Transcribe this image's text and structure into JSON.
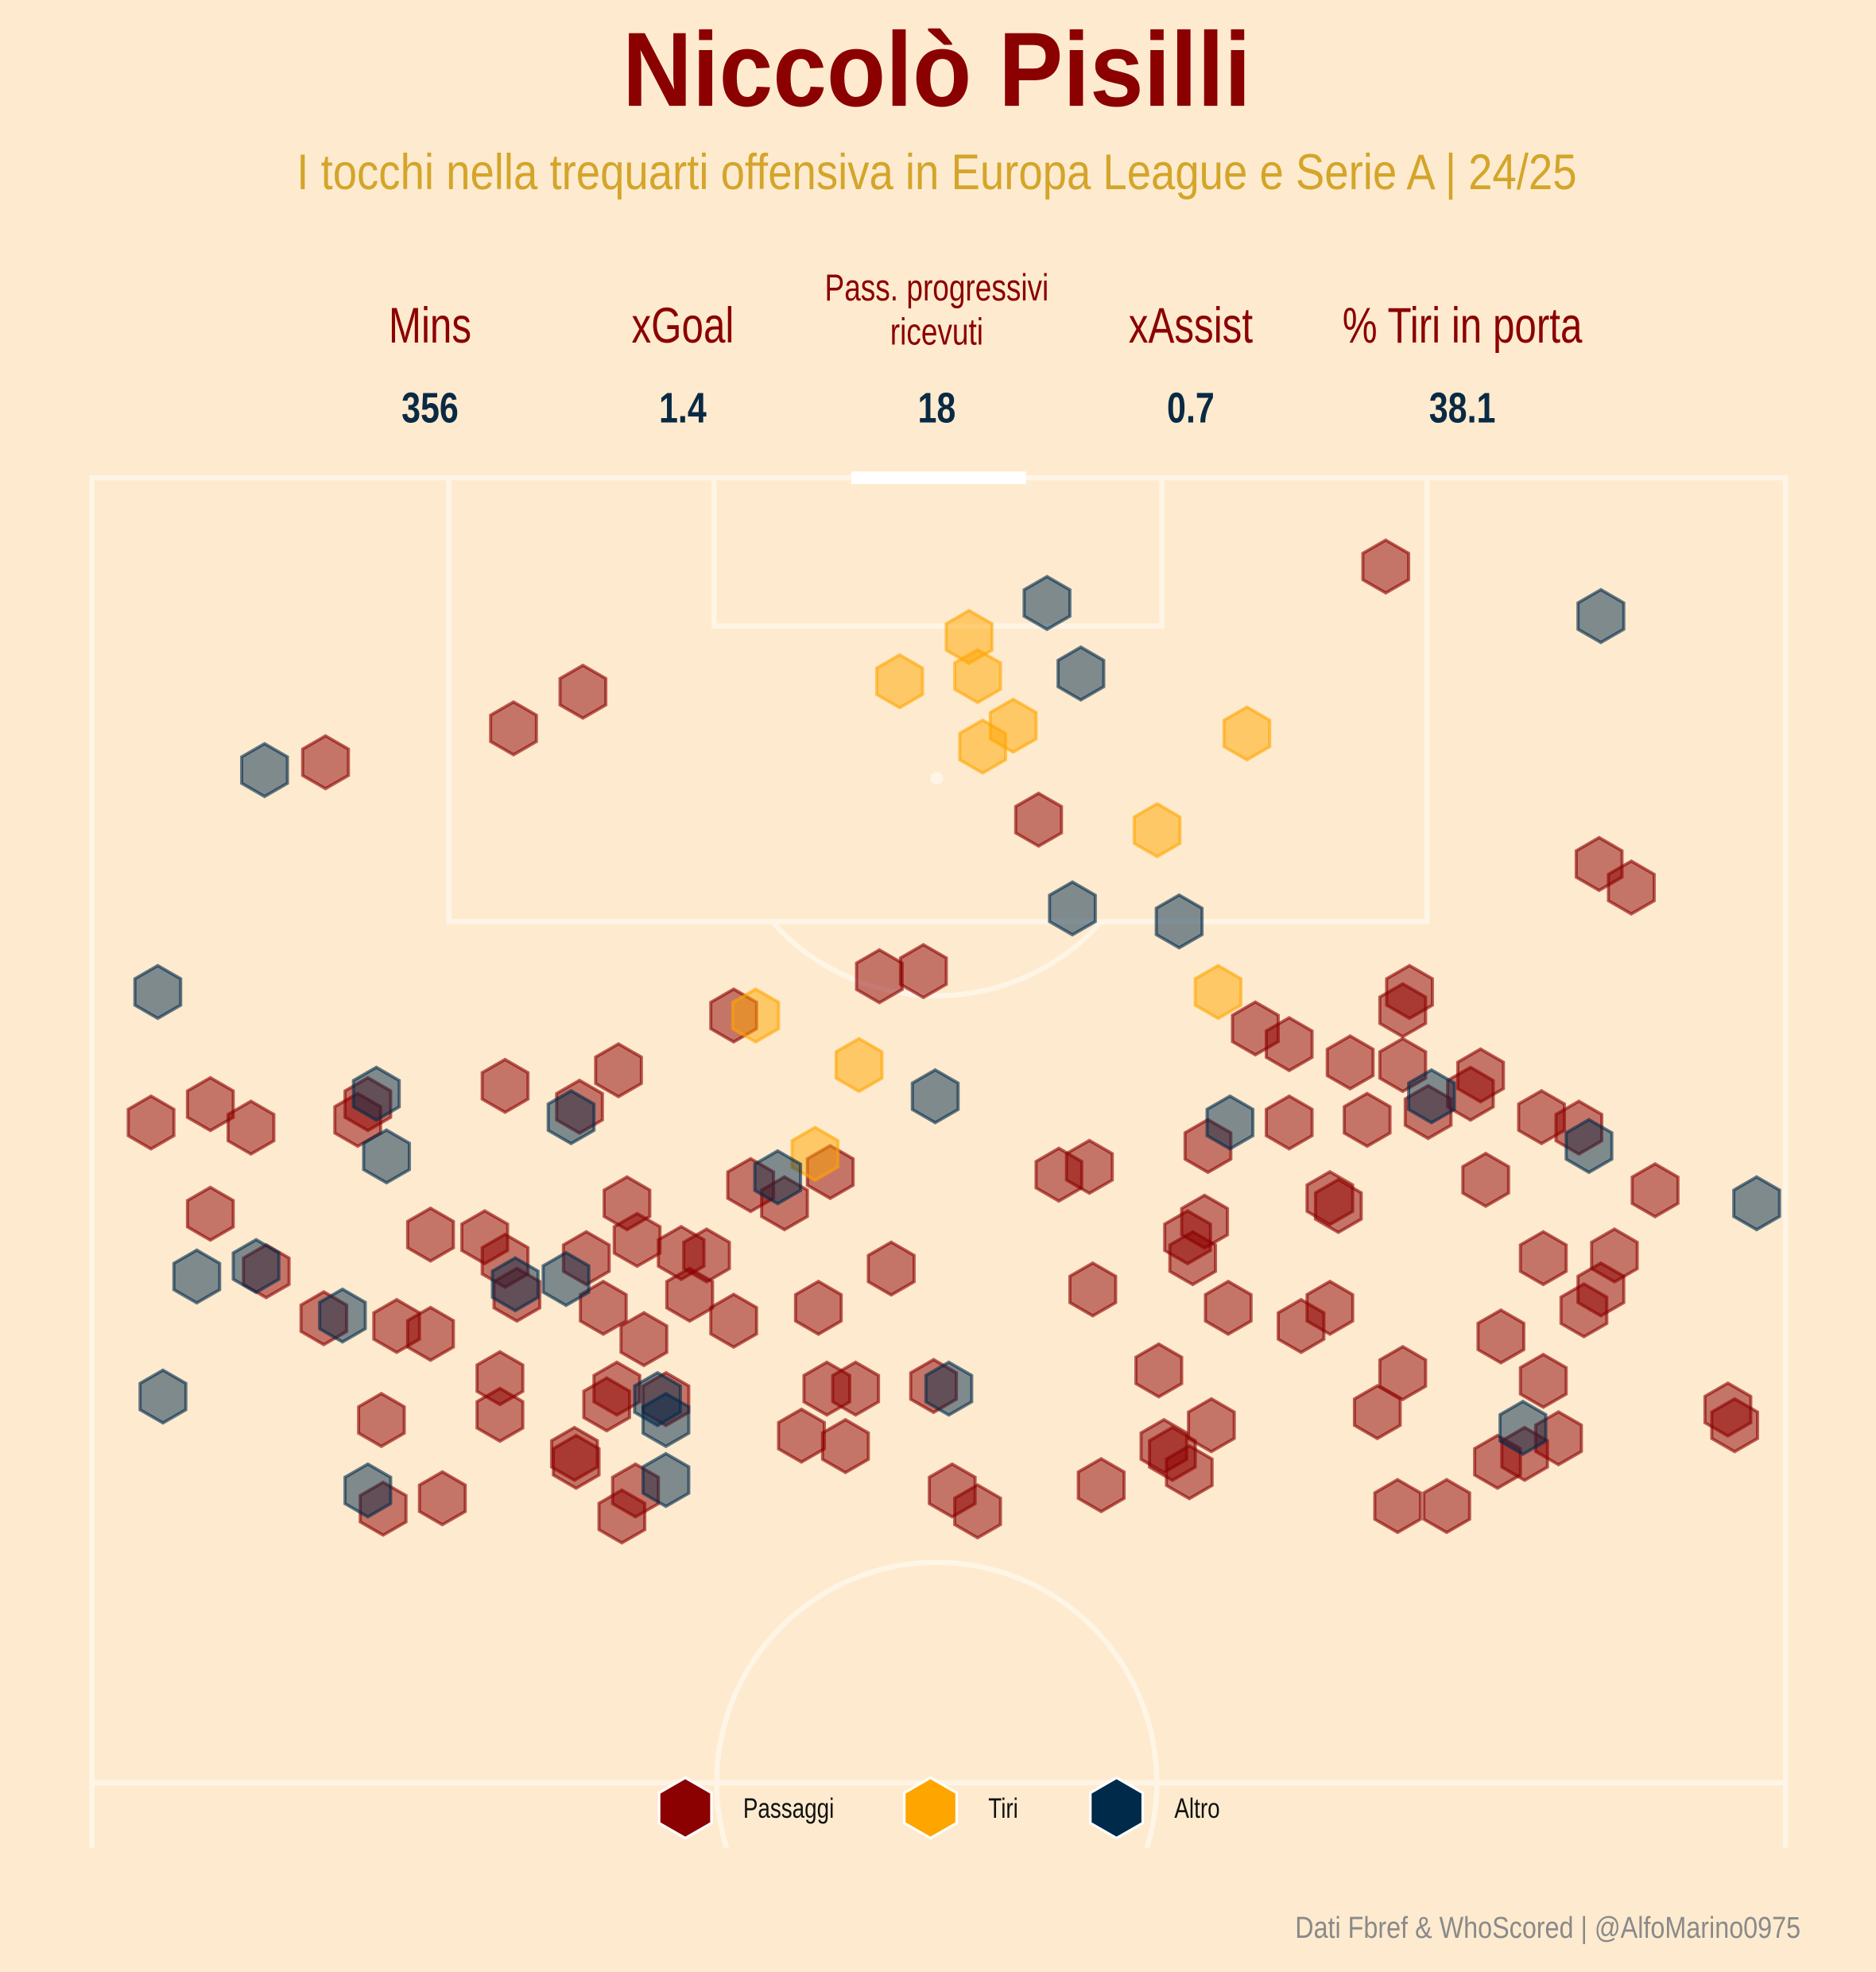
{
  "chart_data": {
    "type": "scatter",
    "title": "Niccolò Pisilli",
    "subtitle": "I tocchi nella trequarti offensiva in Europa League e Serie A | 24/25",
    "xlim": [
      0,
      100
    ],
    "ylim": [
      50,
      100
    ],
    "series": [
      {
        "name": "Passaggi",
        "color": "#8b0000",
        "x": [
          76.4,
          29.0,
          24.9,
          13.8,
          55.9,
          89.0,
          90.9,
          46.5,
          49.1,
          37.9,
          77.8,
          77.4,
          68.7,
          70.7,
          74.3,
          77.4,
          82.0,
          81.4,
          31.1,
          24.4,
          7.0,
          3.5,
          9.4,
          16.3,
          15.7,
          28.8,
          70.7,
          75.3,
          78.9,
          85.6,
          87.8,
          65.9,
          57.1,
          58.9,
          43.6,
          38.9,
          40.9,
          82.3,
          92.3,
          73.1,
          73.6,
          31.6,
          7.0,
          65.7,
          64.7,
          65.0,
          20.0,
          23.2,
          24.4,
          29.2,
          32.2,
          34.8,
          36.3,
          10.3,
          47.2,
          25.1,
          85.7,
          89.9,
          89.1,
          88.1,
          59.1,
          67.1,
          35.3,
          30.2,
          42.9,
          73.1,
          71.4,
          37.9,
          13.7,
          18.0,
          20.0,
          32.6,
          83.2,
          63.0,
          77.4,
          24.1,
          24.1,
          17.1,
          31.0,
          30.4,
          33.9,
          43.4,
          45.1,
          49.7,
          85.7,
          75.9,
          66.1,
          96.6,
          97.0,
          41.9,
          44.5,
          86.6,
          83.0,
          84.6,
          63.3,
          63.8,
          64.8,
          28.5,
          28.6,
          32.1,
          50.8,
          52.3,
          59.6,
          17.2,
          20.7,
          31.3,
          77.1,
          80.0
        ],
        "values": [
          96.6,
          91.8,
          90.4,
          89.1,
          86.9,
          85.2,
          84.3,
          80.9,
          81.1,
          79.4,
          80.3,
          79.6,
          78.9,
          78.3,
          77.6,
          77.5,
          77.1,
          76.4,
          77.3,
          76.7,
          76.0,
          75.3,
          75.1,
          76.0,
          75.4,
          75.9,
          75.3,
          75.4,
          75.7,
          75.5,
          75.1,
          74.4,
          73.3,
          73.6,
          73.4,
          72.9,
          72.2,
          73.1,
          72.7,
          72.4,
          72.1,
          72.2,
          71.8,
          71.5,
          70.9,
          70.1,
          71.0,
          70.9,
          70.0,
          70.1,
          70.8,
          70.3,
          70.2,
          69.6,
          69.7,
          68.7,
          70.1,
          70.2,
          68.9,
          68.1,
          68.9,
          68.2,
          68.7,
          68.2,
          68.2,
          68.2,
          67.5,
          67.7,
          67.8,
          67.5,
          67.2,
          67.0,
          67.1,
          65.8,
          65.7,
          65.5,
          64.1,
          63.9,
          65.1,
          64.5,
          64.7,
          65.1,
          65.1,
          65.2,
          65.4,
          64.2,
          63.7,
          64.3,
          63.7,
          63.3,
          62.9,
          63.2,
          62.3,
          62.6,
          62.9,
          62.6,
          61.9,
          62.6,
          62.3,
          61.2,
          61.2,
          60.4,
          61.4,
          60.5,
          60.9,
          60.2,
          60.6,
          60.6
        ]
      },
      {
        "name": "Tiri",
        "color": "#ffa500",
        "x": [
          51.8,
          47.7,
          52.3,
          54.4,
          52.6,
          68.2,
          62.9,
          66.5,
          39.2,
          45.3,
          42.7
        ],
        "values": [
          93.9,
          92.2,
          92.4,
          90.5,
          89.7,
          90.2,
          86.5,
          80.3,
          79.4,
          77.5,
          74.1
        ]
      },
      {
        "name": "Altro",
        "color": "#002a4a",
        "x": [
          56.4,
          89.1,
          10.2,
          58.4,
          57.9,
          64.2,
          3.9,
          16.8,
          49.8,
          17.4,
          28.3,
          67.2,
          79.1,
          88.4,
          40.5,
          98.3,
          6.2,
          9.7,
          14.8,
          25.0,
          28.0,
          50.6,
          4.2,
          33.4,
          33.9,
          84.5,
          33.9,
          16.3
        ],
        "values": [
          95.2,
          94.7,
          88.8,
          92.5,
          83.5,
          83.0,
          80.3,
          76.4,
          76.3,
          74.0,
          75.5,
          75.3,
          76.3,
          74.4,
          73.2,
          72.2,
          69.4,
          69.8,
          67.9,
          69.1,
          69.3,
          65.1,
          64.8,
          64.7,
          63.9,
          63.6,
          61.6,
          61.2
        ]
      }
    ]
  },
  "stats": [
    {
      "label": [
        "Mins"
      ],
      "value": 356
    },
    {
      "label": [
        "xGoal"
      ],
      "value": 1.4
    },
    {
      "label": [
        "Pass. progressivi",
        "ricevuti"
      ],
      "value": 18
    },
    {
      "label": [
        "xAssist"
      ],
      "value": 0.7
    },
    {
      "label": [
        "% Tiri in porta"
      ],
      "value": 38.1
    }
  ],
  "source": "Dati Fbref & WhoScored | @AlfoMarino0975"
}
